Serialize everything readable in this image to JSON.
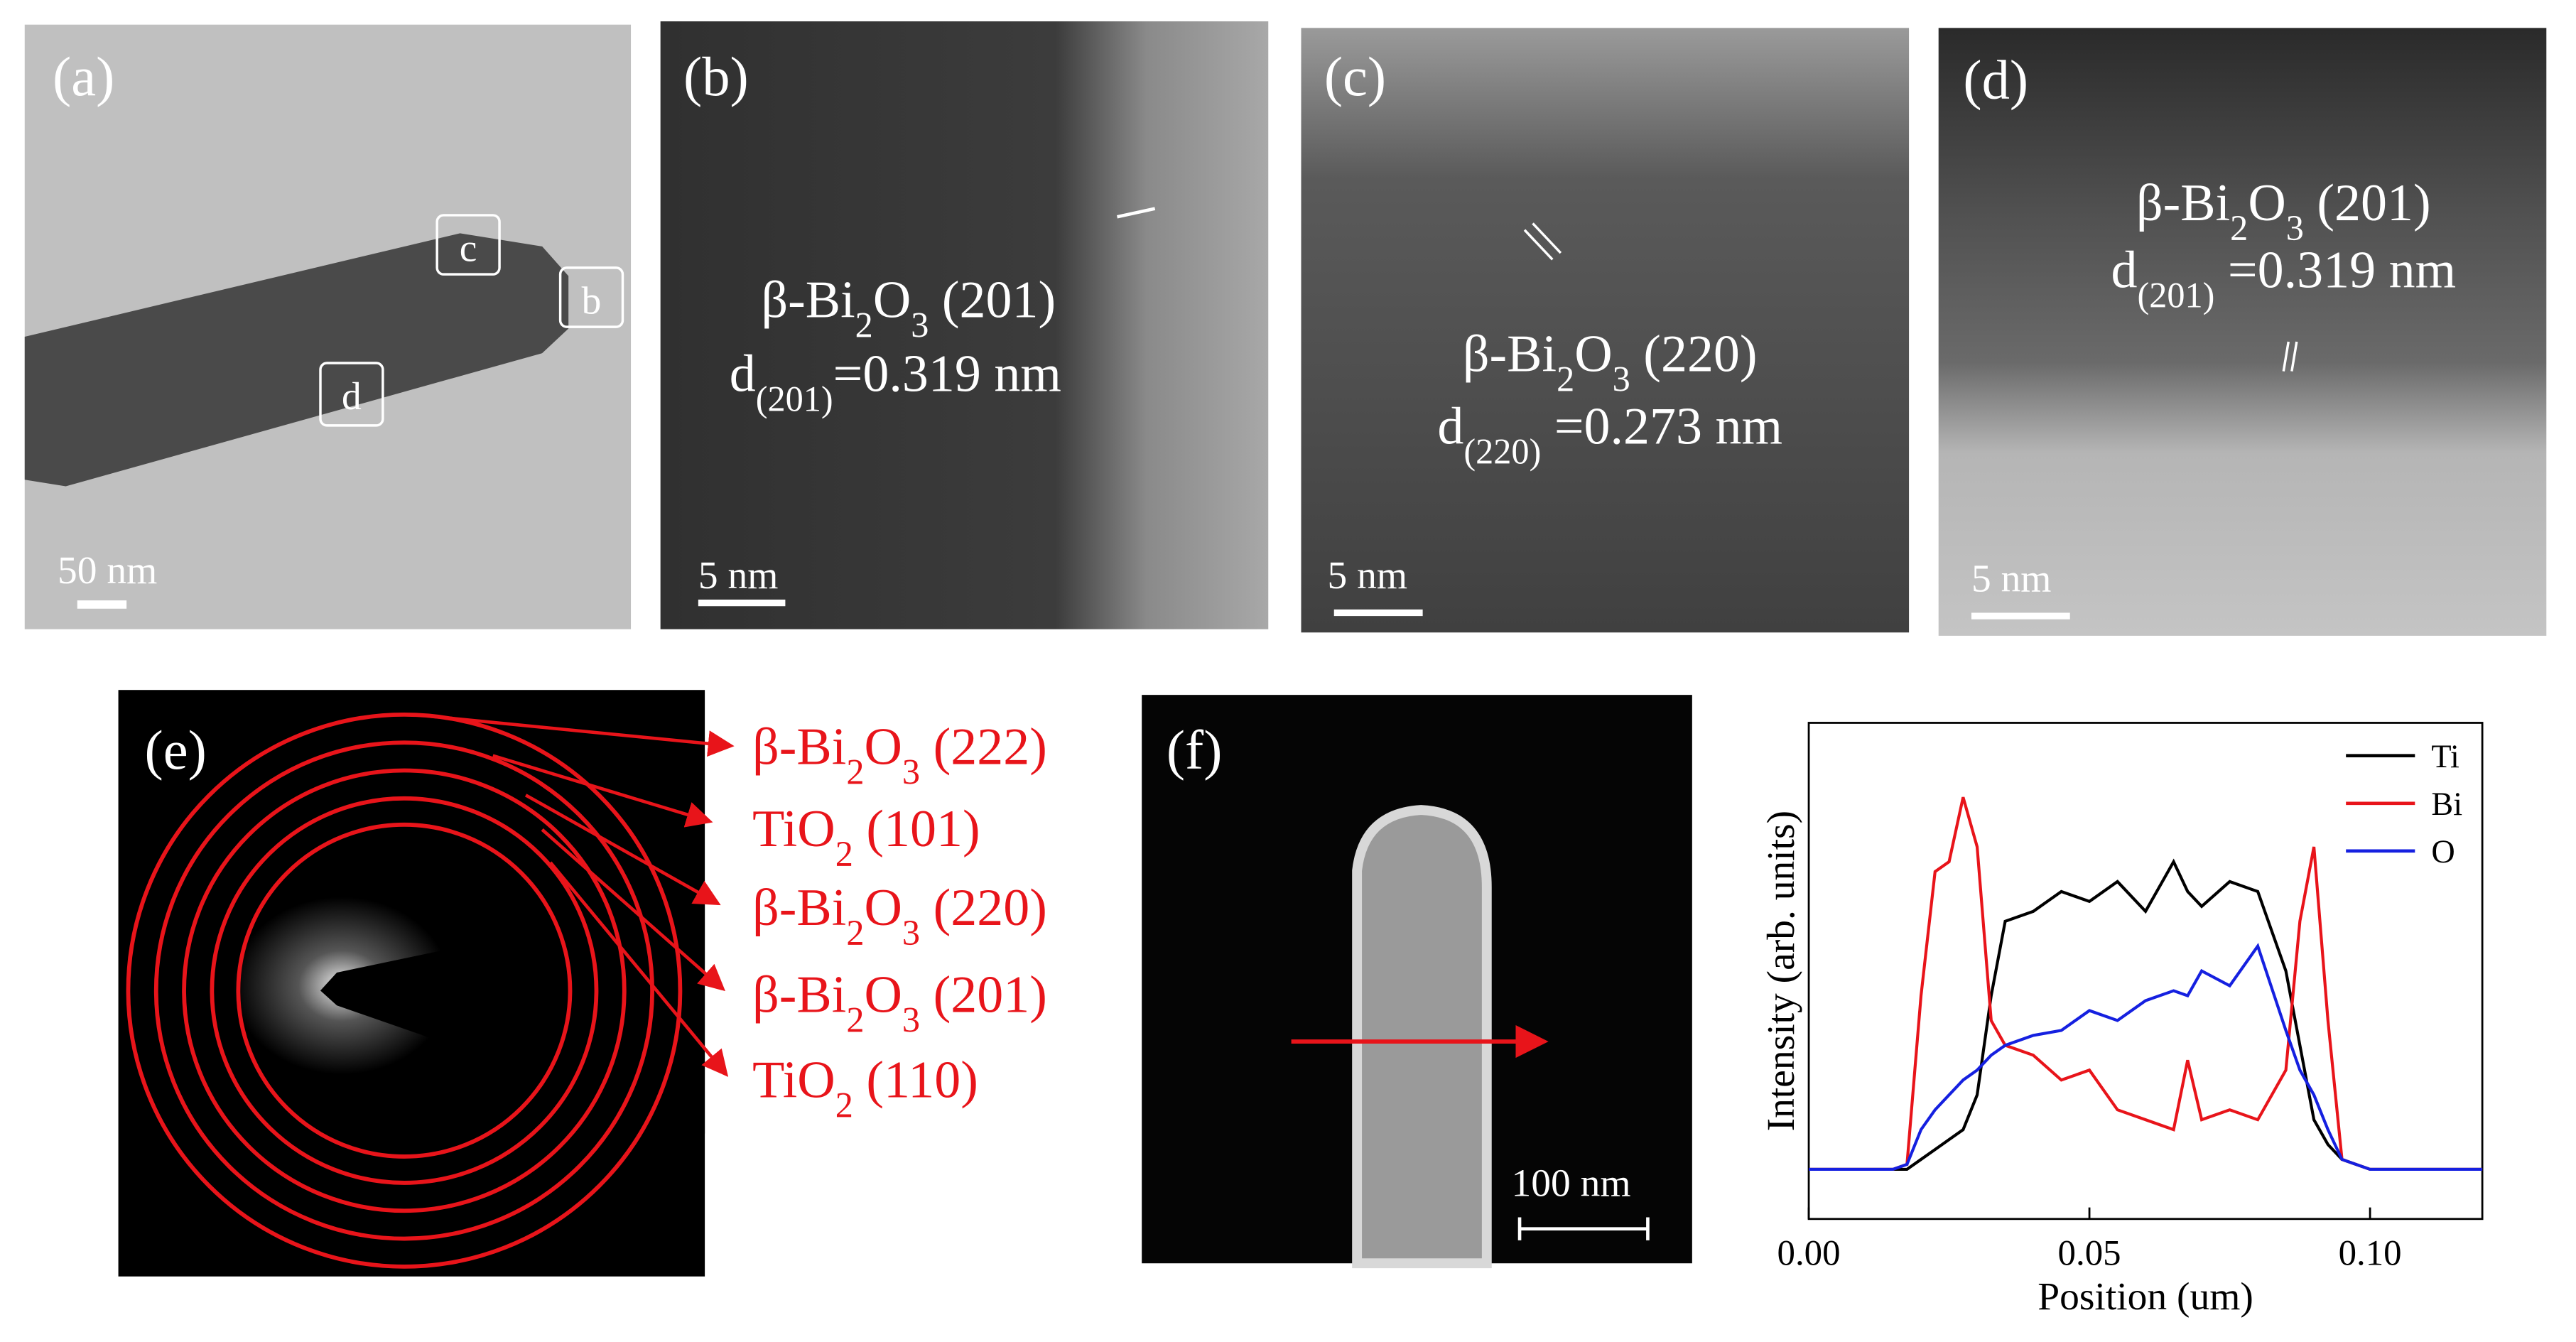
{
  "panels": [
    {
      "label": "(a)",
      "scale_bar": "50 nm",
      "regions": [
        "c",
        "b",
        "d"
      ]
    },
    {
      "label": "(b)",
      "phase": [
        "β-Bi",
        "2",
        "O",
        "3",
        " (201)"
      ],
      "spacing": [
        "d",
        "(201)",
        "=0.319 nm"
      ],
      "scale_bar": "5 nm"
    },
    {
      "label": "(c)",
      "phase": [
        "β-Bi",
        "2",
        "O",
        "3",
        " (220)"
      ],
      "spacing": [
        "d",
        "(220)",
        " =0.273 nm"
      ],
      "scale_bar": "5 nm"
    },
    {
      "label": "(d)",
      "phase": [
        "β-Bi",
        "2",
        "O",
        "3",
        " (201)"
      ],
      "spacing": [
        "d",
        "(201)",
        " =0.319 nm"
      ],
      "scale_bar": "5 nm"
    },
    {
      "label": "(e)",
      "rings": [
        [
          "β-Bi",
          "2",
          "O",
          "3",
          " (222)"
        ],
        [
          "TiO",
          "2",
          " (101)"
        ],
        [
          "β-Bi",
          "2",
          "O",
          "3",
          " (220)"
        ],
        [
          "β-Bi",
          "2",
          "O",
          "3",
          " (201)"
        ],
        [
          "TiO",
          "2",
          " (110)"
        ]
      ]
    },
    {
      "label": "(f)",
      "scale_bar": "100 nm"
    }
  ],
  "chart_data": {
    "type": "line",
    "x_label": "Position (um)",
    "y_label": "Intensity (arb. units)",
    "x": [
      0,
      0.005,
      0.01,
      0.015,
      0.0175,
      0.02,
      0.0225,
      0.025,
      0.0275,
      0.03,
      0.0325,
      0.035,
      0.04,
      0.045,
      0.05,
      0.055,
      0.06,
      0.065,
      0.0675,
      0.07,
      0.075,
      0.08,
      0.085,
      0.0875,
      0.09,
      0.0925,
      0.095,
      0.1,
      0.105,
      0.11,
      0.115,
      0.12
    ],
    "series": [
      {
        "name": "Ti",
        "color": "#000000",
        "values": [
          0.1,
          0.1,
          0.1,
          0.1,
          0.1,
          0.12,
          0.14,
          0.16,
          0.18,
          0.25,
          0.45,
          0.6,
          0.62,
          0.66,
          0.64,
          0.68,
          0.62,
          0.72,
          0.66,
          0.63,
          0.68,
          0.66,
          0.5,
          0.35,
          0.2,
          0.15,
          0.12,
          0.1,
          0.1,
          0.1,
          0.1,
          0.1
        ]
      },
      {
        "name": "Bi",
        "color": "#e8141a",
        "values": [
          0.1,
          0.1,
          0.1,
          0.1,
          0.11,
          0.45,
          0.7,
          0.72,
          0.85,
          0.75,
          0.4,
          0.35,
          0.33,
          0.28,
          0.3,
          0.22,
          0.2,
          0.18,
          0.32,
          0.2,
          0.22,
          0.2,
          0.3,
          0.6,
          0.75,
          0.4,
          0.12,
          0.1,
          0.1,
          0.1,
          0.1,
          0.1
        ]
      },
      {
        "name": "O",
        "color": "#1520e0",
        "values": [
          0.1,
          0.1,
          0.1,
          0.1,
          0.11,
          0.18,
          0.22,
          0.25,
          0.28,
          0.3,
          0.33,
          0.35,
          0.37,
          0.38,
          0.42,
          0.4,
          0.44,
          0.46,
          0.45,
          0.5,
          0.47,
          0.55,
          0.38,
          0.3,
          0.25,
          0.18,
          0.12,
          0.1,
          0.1,
          0.1,
          0.1,
          0.1
        ]
      }
    ],
    "xlim": [
      0,
      0.12
    ],
    "ylim": [
      0,
      1
    ],
    "xticks": [
      {
        "value": 0,
        "label": "0.00"
      },
      {
        "value": 0.05,
        "label": "0.05"
      },
      {
        "value": 0.1,
        "label": "0.10"
      }
    ],
    "legend": "upper right"
  }
}
